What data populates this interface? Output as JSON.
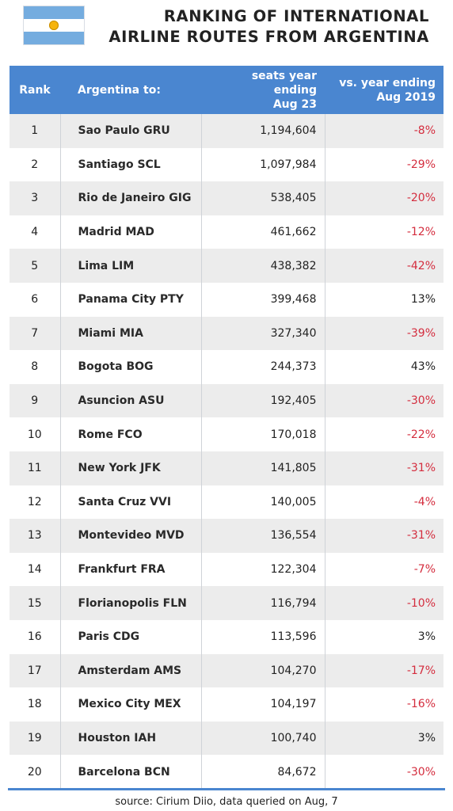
{
  "title_lines": [
    "RANKING OF INTERNATIONAL",
    "AIRLINE ROUTES FROM ARGENTINA"
  ],
  "flag_icon": "argentina-flag-icon",
  "colors": {
    "header_blue": "#4a86d0",
    "negative_red": "#d42d3e",
    "row_stripe": "#ececec"
  },
  "table": {
    "headers": {
      "rank": "Rank",
      "destination": "Argentina to:",
      "seats_line1": "seats year ending",
      "seats_line2": "Aug 23",
      "change_line1": "vs. year ending",
      "change_line2": "Aug 2019"
    },
    "rows": [
      {
        "rank": "1",
        "destination": "Sao Paulo GRU",
        "seats": "1,194,604",
        "change": "-8%"
      },
      {
        "rank": "2",
        "destination": "Santiago SCL",
        "seats": "1,097,984",
        "change": "-29%"
      },
      {
        "rank": "3",
        "destination": "Rio de Janeiro GIG",
        "seats": "538,405",
        "change": "-20%"
      },
      {
        "rank": "4",
        "destination": "Madrid MAD",
        "seats": "461,662",
        "change": "-12%"
      },
      {
        "rank": "5",
        "destination": "Lima LIM",
        "seats": "438,382",
        "change": "-42%"
      },
      {
        "rank": "6",
        "destination": "Panama City PTY",
        "seats": "399,468",
        "change": "13%"
      },
      {
        "rank": "7",
        "destination": "Miami MIA",
        "seats": "327,340",
        "change": "-39%"
      },
      {
        "rank": "8",
        "destination": "Bogota BOG",
        "seats": "244,373",
        "change": "43%"
      },
      {
        "rank": "9",
        "destination": "Asuncion ASU",
        "seats": "192,405",
        "change": "-30%"
      },
      {
        "rank": "10",
        "destination": "Rome FCO",
        "seats": "170,018",
        "change": "-22%"
      },
      {
        "rank": "11",
        "destination": "New York JFK",
        "seats": "141,805",
        "change": "-31%"
      },
      {
        "rank": "12",
        "destination": "Santa Cruz VVI",
        "seats": "140,005",
        "change": "-4%"
      },
      {
        "rank": "13",
        "destination": "Montevideo MVD",
        "seats": "136,554",
        "change": "-31%"
      },
      {
        "rank": "14",
        "destination": "Frankfurt FRA",
        "seats": "122,304",
        "change": "-7%"
      },
      {
        "rank": "15",
        "destination": "Florianopolis FLN",
        "seats": "116,794",
        "change": "-10%"
      },
      {
        "rank": "16",
        "destination": "Paris CDG",
        "seats": "113,596",
        "change": "3%"
      },
      {
        "rank": "17",
        "destination": "Amsterdam AMS",
        "seats": "104,270",
        "change": "-17%"
      },
      {
        "rank": "18",
        "destination": "Mexico City MEX",
        "seats": "104,197",
        "change": "-16%"
      },
      {
        "rank": "19",
        "destination": "Houston IAH",
        "seats": "100,740",
        "change": "3%"
      },
      {
        "rank": "20",
        "destination": "Barcelona BCN",
        "seats": "84,672",
        "change": "-30%"
      }
    ]
  },
  "source": "source: Cirium Diio, data queried on Aug, 7"
}
